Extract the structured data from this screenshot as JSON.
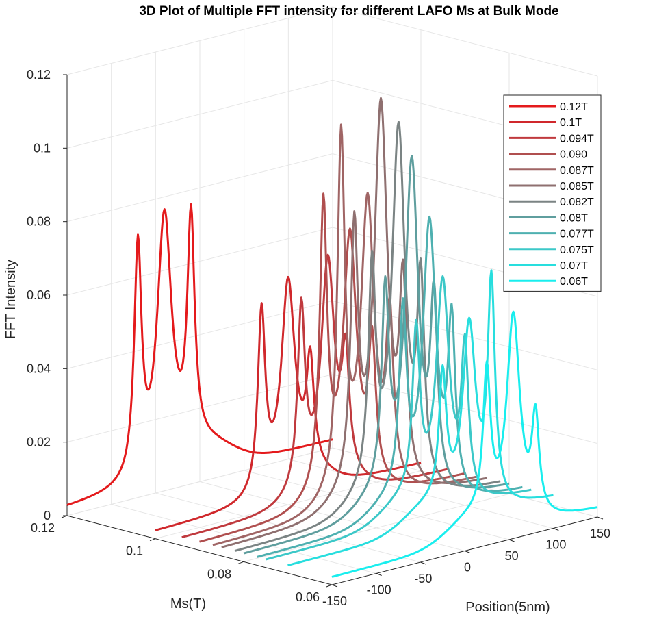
{
  "chart_data": {
    "type": "line",
    "view": "3d",
    "title": "3D Plot of Multiple FFT intensity for different LAFO Ms at Bulk Mode",
    "xlabel": "Position(5nm)",
    "ylabel": "Ms(T)",
    "zlabel": "FFT Intensity",
    "xlim": [
      -150,
      150
    ],
    "ylim": [
      0.06,
      0.12
    ],
    "zlim": [
      0,
      0.12
    ],
    "xticks": [
      "-150",
      "-100",
      "-50",
      "0",
      "50",
      "100",
      "150"
    ],
    "yticks": [
      "0.06",
      "0.08",
      "0.1",
      "0.12"
    ],
    "zticks": [
      "0",
      "0.02",
      "0.04",
      "0.06",
      "0.08",
      "0.1",
      "0.12"
    ],
    "grid": true,
    "legend_position": "top-right",
    "series": [
      {
        "name": "0.12T",
        "ms": 0.12,
        "color": "#e41a1c",
        "peaks": [
          [
            -70,
            0.062,
            5
          ],
          [
            -40,
            0.07,
            10
          ],
          [
            -10,
            0.062,
            5
          ]
        ]
      },
      {
        "name": "0.1T",
        "ms": 0.1,
        "color": "#d0282c",
        "peaks": [
          [
            -30,
            0.048,
            5
          ],
          [
            0,
            0.052,
            9
          ],
          [
            25,
            0.028,
            5
          ]
        ]
      },
      {
        "name": "0.094T",
        "ms": 0.094,
        "color": "#c03a3e",
        "peaks": [
          [
            -15,
            0.048,
            5
          ],
          [
            15,
            0.058,
            9
          ],
          [
            35,
            0.03,
            5
          ]
        ]
      },
      {
        "name": "0.090",
        "ms": 0.09,
        "color": "#b04f4f",
        "peaks": [
          [
            -10,
            0.076,
            5
          ],
          [
            20,
            0.066,
            9
          ],
          [
            45,
            0.036,
            5
          ]
        ]
      },
      {
        "name": "0.087T",
        "ms": 0.087,
        "color": "#a06565",
        "peaks": [
          [
            -5,
            0.094,
            5
          ],
          [
            25,
            0.076,
            9
          ],
          [
            50,
            0.044,
            5
          ]
        ]
      },
      {
        "name": "0.085T",
        "ms": 0.085,
        "color": "#8f7070",
        "peaks": [
          [
            0,
            0.068,
            5
          ],
          [
            30,
            0.103,
            9
          ],
          [
            55,
            0.052,
            5
          ]
        ]
      },
      {
        "name": "0.082T",
        "ms": 0.082,
        "color": "#7b8484",
        "peaks": [
          [
            5,
            0.058,
            5
          ],
          [
            35,
            0.098,
            9
          ],
          [
            60,
            0.054,
            5
          ]
        ]
      },
      {
        "name": "0.08T",
        "ms": 0.08,
        "color": "#5f9e9e",
        "peaks": [
          [
            10,
            0.052,
            5
          ],
          [
            40,
            0.09,
            9
          ],
          [
            65,
            0.05,
            5
          ]
        ]
      },
      {
        "name": "0.077T",
        "ms": 0.077,
        "color": "#4eb0b0",
        "peaks": [
          [
            15,
            0.048,
            5
          ],
          [
            45,
            0.075,
            9
          ],
          [
            70,
            0.046,
            5
          ]
        ]
      },
      {
        "name": "0.075T",
        "ms": 0.075,
        "color": "#3cc8c8",
        "peaks": [
          [
            20,
            0.044,
            5
          ],
          [
            50,
            0.06,
            9
          ],
          [
            75,
            0.04,
            5
          ]
        ]
      },
      {
        "name": "0.07T",
        "ms": 0.07,
        "color": "#28dede",
        "peaks": [
          [
            25,
            0.034,
            5
          ],
          [
            55,
            0.05,
            9
          ],
          [
            80,
            0.06,
            5
          ]
        ]
      },
      {
        "name": "0.06T",
        "ms": 0.06,
        "color": "#19eeee",
        "peaks": [
          [
            25,
            0.038,
            5
          ],
          [
            55,
            0.056,
            9
          ],
          [
            80,
            0.026,
            5
          ]
        ]
      }
    ]
  }
}
